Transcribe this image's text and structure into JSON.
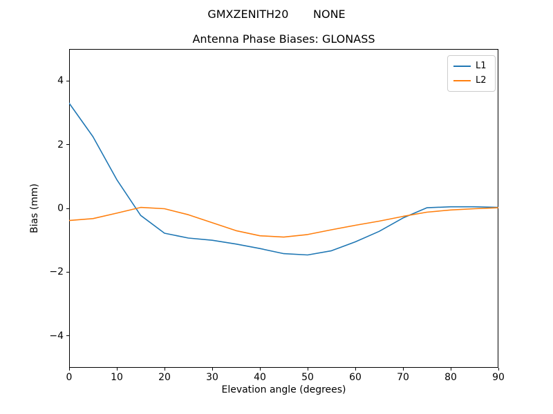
{
  "chart_data": {
    "type": "line",
    "suptitle": "GMXZENITH20       NONE",
    "title": "Antenna Phase Biases: GLONASS",
    "xlabel": "Elevation angle (degrees)",
    "ylabel": "Bias (mm)",
    "xlim": [
      0,
      90
    ],
    "ylim": [
      -5,
      5
    ],
    "xticks": [
      0,
      10,
      20,
      30,
      40,
      50,
      60,
      70,
      80,
      90
    ],
    "xtick_labels": [
      "0",
      "10",
      "20",
      "30",
      "40",
      "50",
      "60",
      "70",
      "80",
      "90"
    ],
    "yticks": [
      -4,
      -2,
      0,
      2,
      4
    ],
    "ytick_labels": [
      "−4",
      "−2",
      "0",
      "2",
      "4"
    ],
    "grid": false,
    "legend_position": "upper right",
    "x": [
      0,
      5,
      10,
      15,
      20,
      25,
      30,
      35,
      40,
      45,
      50,
      55,
      60,
      65,
      70,
      75,
      80,
      85,
      90
    ],
    "series": [
      {
        "name": "L1",
        "color": "#1f77b4",
        "values": [
          3.3,
          2.25,
          0.9,
          -0.22,
          -0.78,
          -0.93,
          -1.0,
          -1.12,
          -1.26,
          -1.42,
          -1.46,
          -1.33,
          -1.05,
          -0.72,
          -0.3,
          0.02,
          0.05,
          0.05,
          0.03
        ]
      },
      {
        "name": "L2",
        "color": "#ff7f0e",
        "values": [
          -0.38,
          -0.32,
          -0.15,
          0.03,
          -0.01,
          -0.2,
          -0.45,
          -0.7,
          -0.86,
          -0.9,
          -0.82,
          -0.67,
          -0.53,
          -0.4,
          -0.25,
          -0.12,
          -0.05,
          -0.01,
          0.02
        ]
      }
    ]
  }
}
